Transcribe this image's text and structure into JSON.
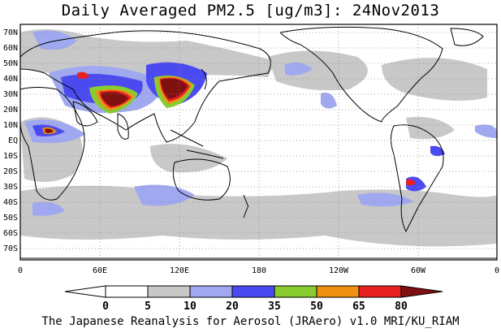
{
  "title": "Daily Averaged PM2.5 [ug/m3]: 24Nov2013",
  "credit": "The Japanese Reanalysis for Aerosol (JRAero) v1.0 MRI/KU_RIAM",
  "map": {
    "projection": "equirectangular",
    "lon_range": [
      0,
      360
    ],
    "lat_range": [
      -75,
      75
    ],
    "lat_ticks": [
      "70N",
      "60N",
      "50N",
      "40N",
      "30N",
      "20N",
      "10N",
      "EQ",
      "10S",
      "20S",
      "30S",
      "40S",
      "50S",
      "60S",
      "70S"
    ],
    "lon_ticks": [
      "0",
      "60E",
      "120E",
      "180",
      "120W",
      "60W",
      "0"
    ],
    "grid": "dotted"
  },
  "colorbar": {
    "levels": [
      "0",
      "5",
      "10",
      "20",
      "35",
      "50",
      "65",
      "80"
    ],
    "colors": [
      "#ffffff",
      "#c8c8c8",
      "#a0a8f0",
      "#4a4af0",
      "#88cc30",
      "#f09010",
      "#e82020",
      "#801010"
    ]
  }
}
